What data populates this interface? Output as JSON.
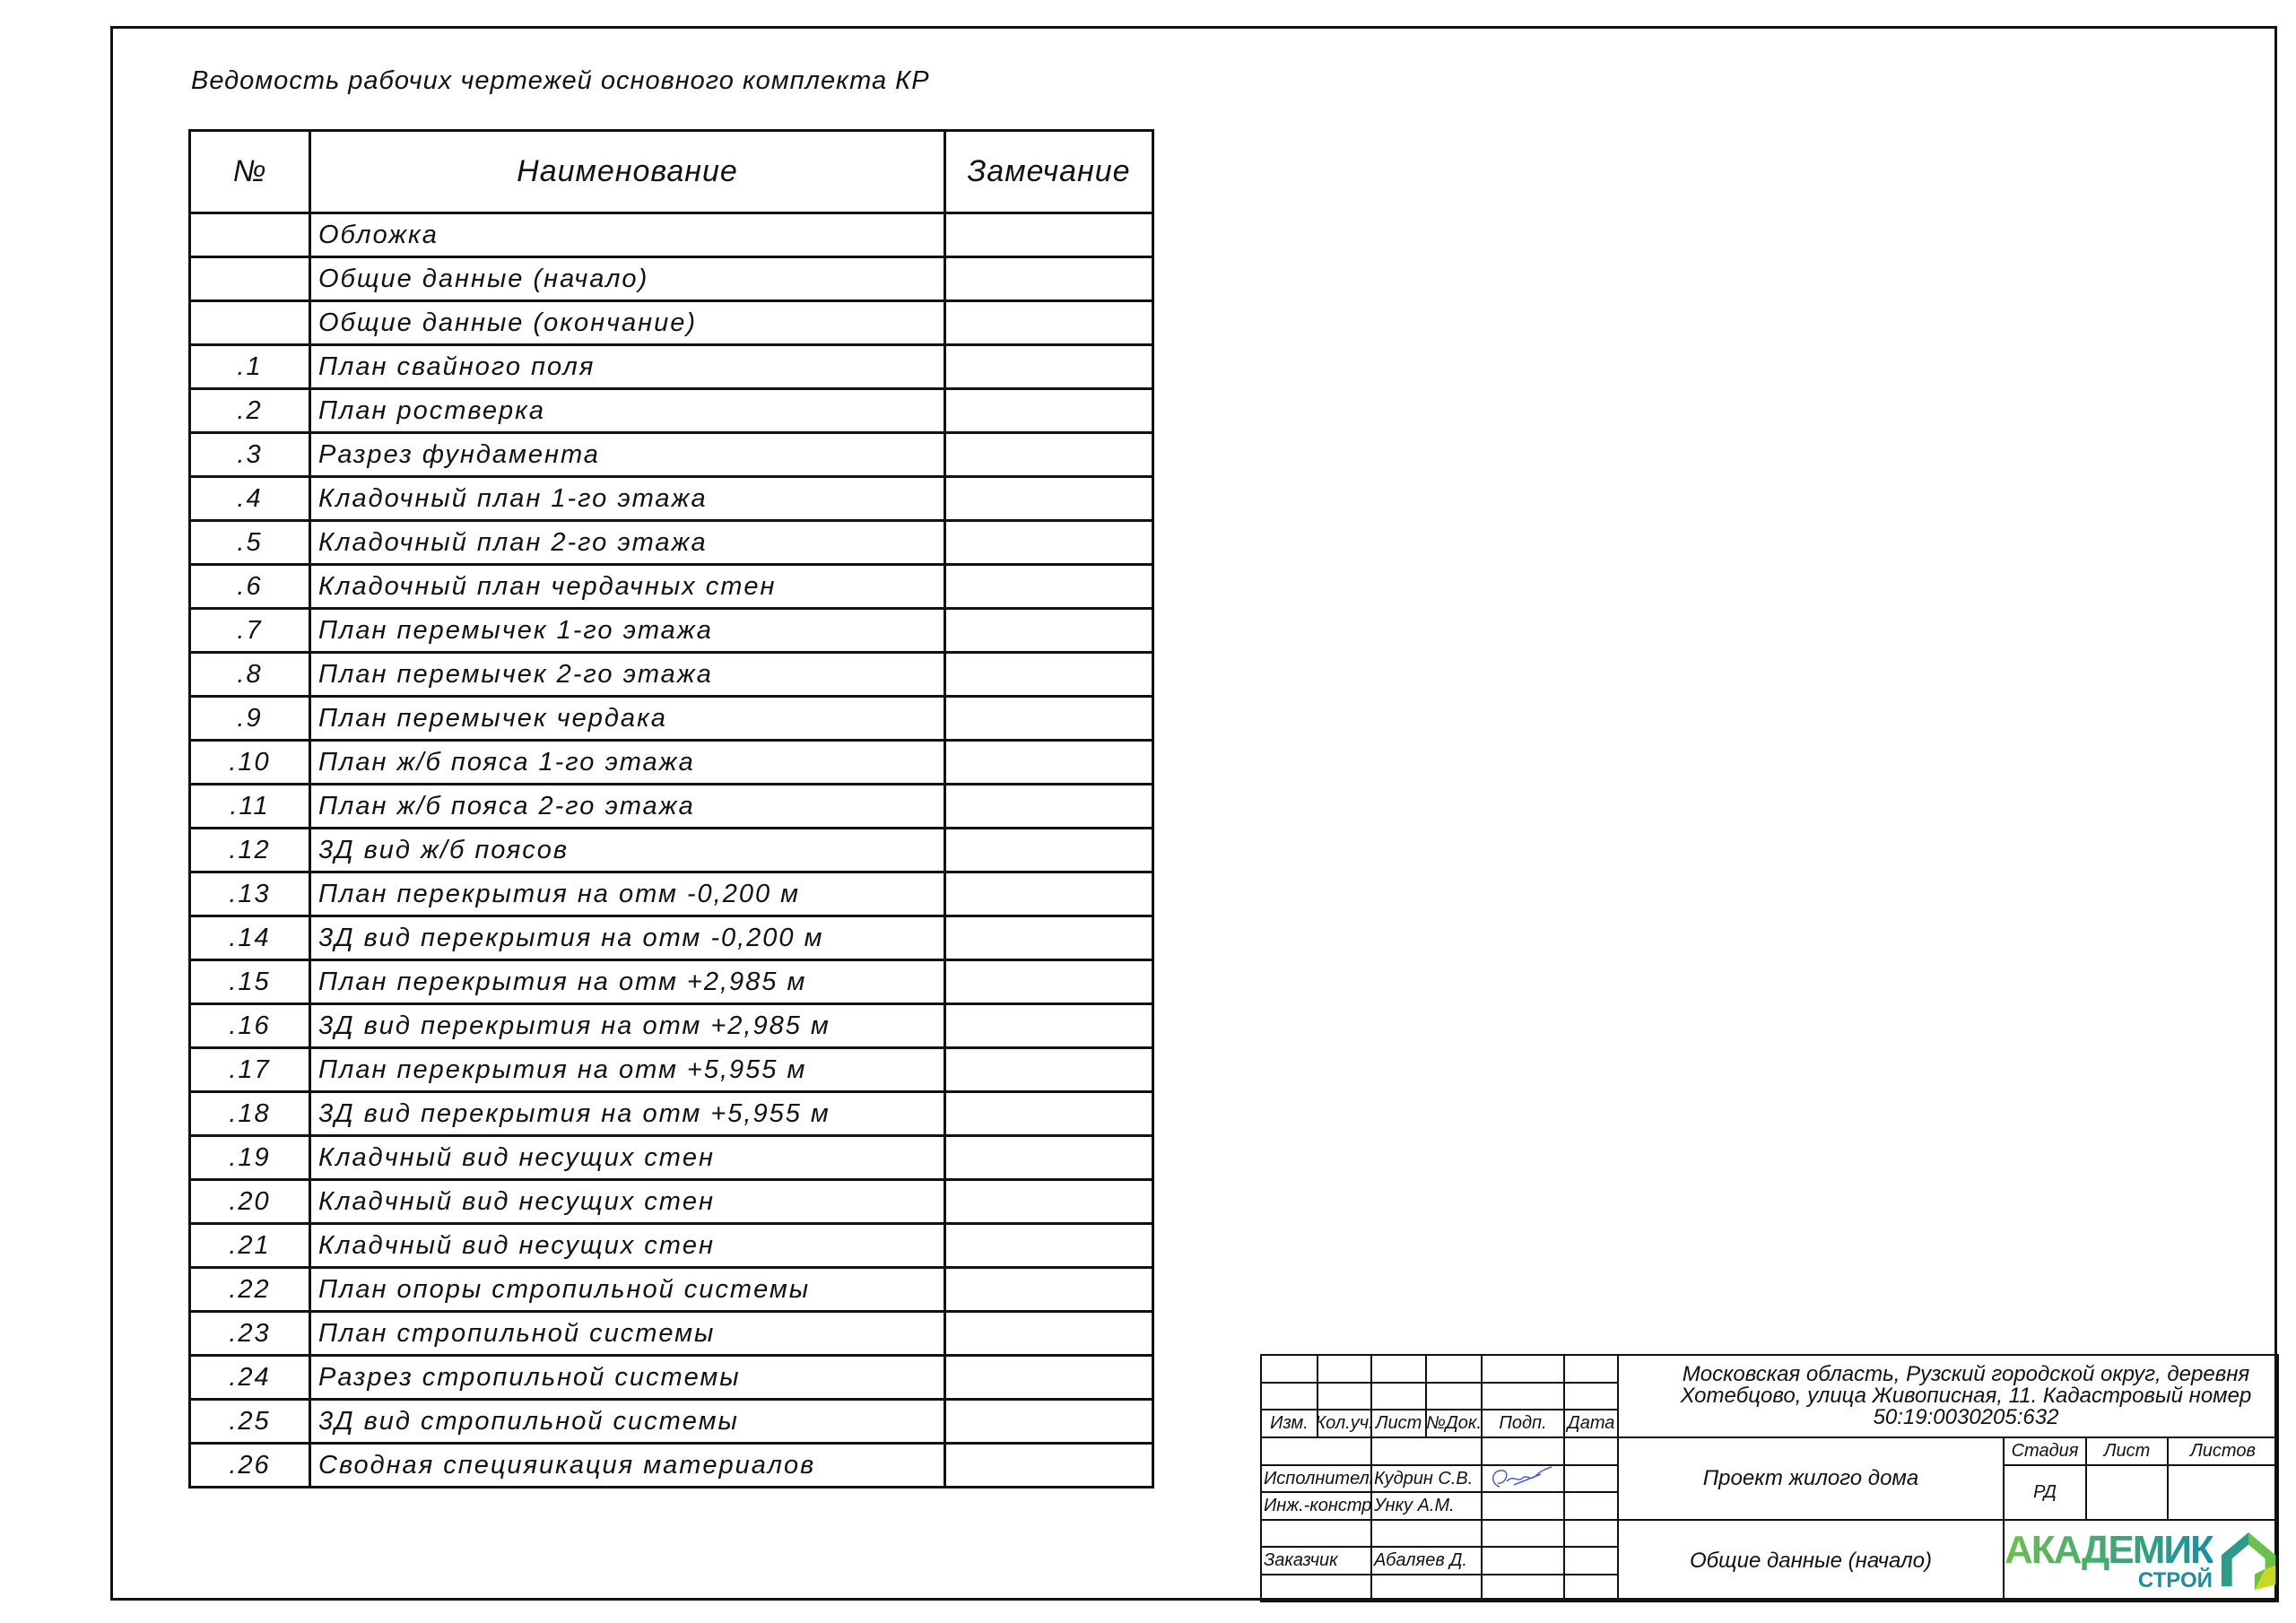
{
  "document_title": "Ведомость рабочих чертежей основного комплекта КР",
  "table": {
    "headers": [
      "№",
      "Наименование",
      "Замечание"
    ],
    "rows": [
      {
        "num": "",
        "name": "Обложка",
        "note": ""
      },
      {
        "num": "",
        "name": "Общие данные (начало)",
        "note": ""
      },
      {
        "num": "",
        "name": "Общие данные (окончание)",
        "note": ""
      },
      {
        "num": ".1",
        "name": "План свайного поля",
        "note": ""
      },
      {
        "num": ".2",
        "name": "План ростверка",
        "note": ""
      },
      {
        "num": ".3",
        "name": "Разрез фундамента",
        "note": ""
      },
      {
        "num": ".4",
        "name": "Кладочный план 1-го этажа",
        "note": ""
      },
      {
        "num": ".5",
        "name": "Кладочный план 2-го этажа",
        "note": ""
      },
      {
        "num": ".6",
        "name": "Кладочный план чердачных стен",
        "note": ""
      },
      {
        "num": ".7",
        "name": "План перемычек 1-го этажа",
        "note": ""
      },
      {
        "num": ".8",
        "name": "План перемычек 2-го этажа",
        "note": ""
      },
      {
        "num": ".9",
        "name": "План перемычек чердака",
        "note": ""
      },
      {
        "num": ".10",
        "name": "План ж/б пояса 1-го этажа",
        "note": ""
      },
      {
        "num": ".11",
        "name": "План ж/б пояса 2-го этажа",
        "note": ""
      },
      {
        "num": ".12",
        "name": "3Д вид ж/б поясов",
        "note": ""
      },
      {
        "num": ".13",
        "name": "План перекрытия на отм -0,200 м",
        "note": ""
      },
      {
        "num": ".14",
        "name": "3Д вид перекрытия на отм -0,200 м",
        "note": ""
      },
      {
        "num": ".15",
        "name": "План перекрытия на отм +2,985 м",
        "note": ""
      },
      {
        "num": ".16",
        "name": "3Д вид перекрытия на отм +2,985 м",
        "note": ""
      },
      {
        "num": ".17",
        "name": "План перекрытия на отм +5,955 м",
        "note": ""
      },
      {
        "num": ".18",
        "name": "3Д вид перекрытия на отм +5,955 м",
        "note": ""
      },
      {
        "num": ".19",
        "name": "Кладчный вид несущих стен",
        "note": ""
      },
      {
        "num": ".20",
        "name": "Кладчный вид несущих стен",
        "note": ""
      },
      {
        "num": ".21",
        "name": "Кладчный вид несущих стен",
        "note": ""
      },
      {
        "num": ".22",
        "name": "План опоры стропильной системы",
        "note": ""
      },
      {
        "num": ".23",
        "name": "План стропильной системы",
        "note": ""
      },
      {
        "num": ".24",
        "name": "Разрез стропильной системы",
        "note": ""
      },
      {
        "num": ".25",
        "name": "3Д вид стропильной системы",
        "note": ""
      },
      {
        "num": ".26",
        "name": "Сводная специяикация материалов",
        "note": ""
      }
    ]
  },
  "title_block": {
    "col_headers": [
      "Изм.",
      "Кол.уч.",
      "Лист",
      "№Док.",
      "Подп.",
      "Дата"
    ],
    "address_line1": "Московская область, Рузский городской округ, деревня",
    "address_line2": "Хотебцово, улица Живописная, 11.  Кадастровый номер",
    "address_line3": "50:19:0030205:632",
    "project_name": "Проект жилого дома",
    "sheet_name": "Общие данные (начало)",
    "stage_label": "Стадия",
    "sheet_label": "Лист",
    "sheets_label": "Листов",
    "stage_value": "РД",
    "sheet_value": "",
    "sheets_value": "",
    "people": [
      {
        "role": "Исполнитель",
        "name": "Кудрин С.В.",
        "signed": true
      },
      {
        "role": "Инж.-констр.",
        "name": "Унку А.М.",
        "signed": false
      },
      {
        "role": "Заказчик",
        "name": "Абаляев Д.",
        "signed": false
      }
    ],
    "logo": {
      "line1": "АКАДЕМИК",
      "line2": "СТРОЙ",
      "colors": [
        "#6cc04a",
        "#1a8fa0",
        "#c8d82a"
      ]
    },
    "signature_color": "#4a5ad0"
  }
}
